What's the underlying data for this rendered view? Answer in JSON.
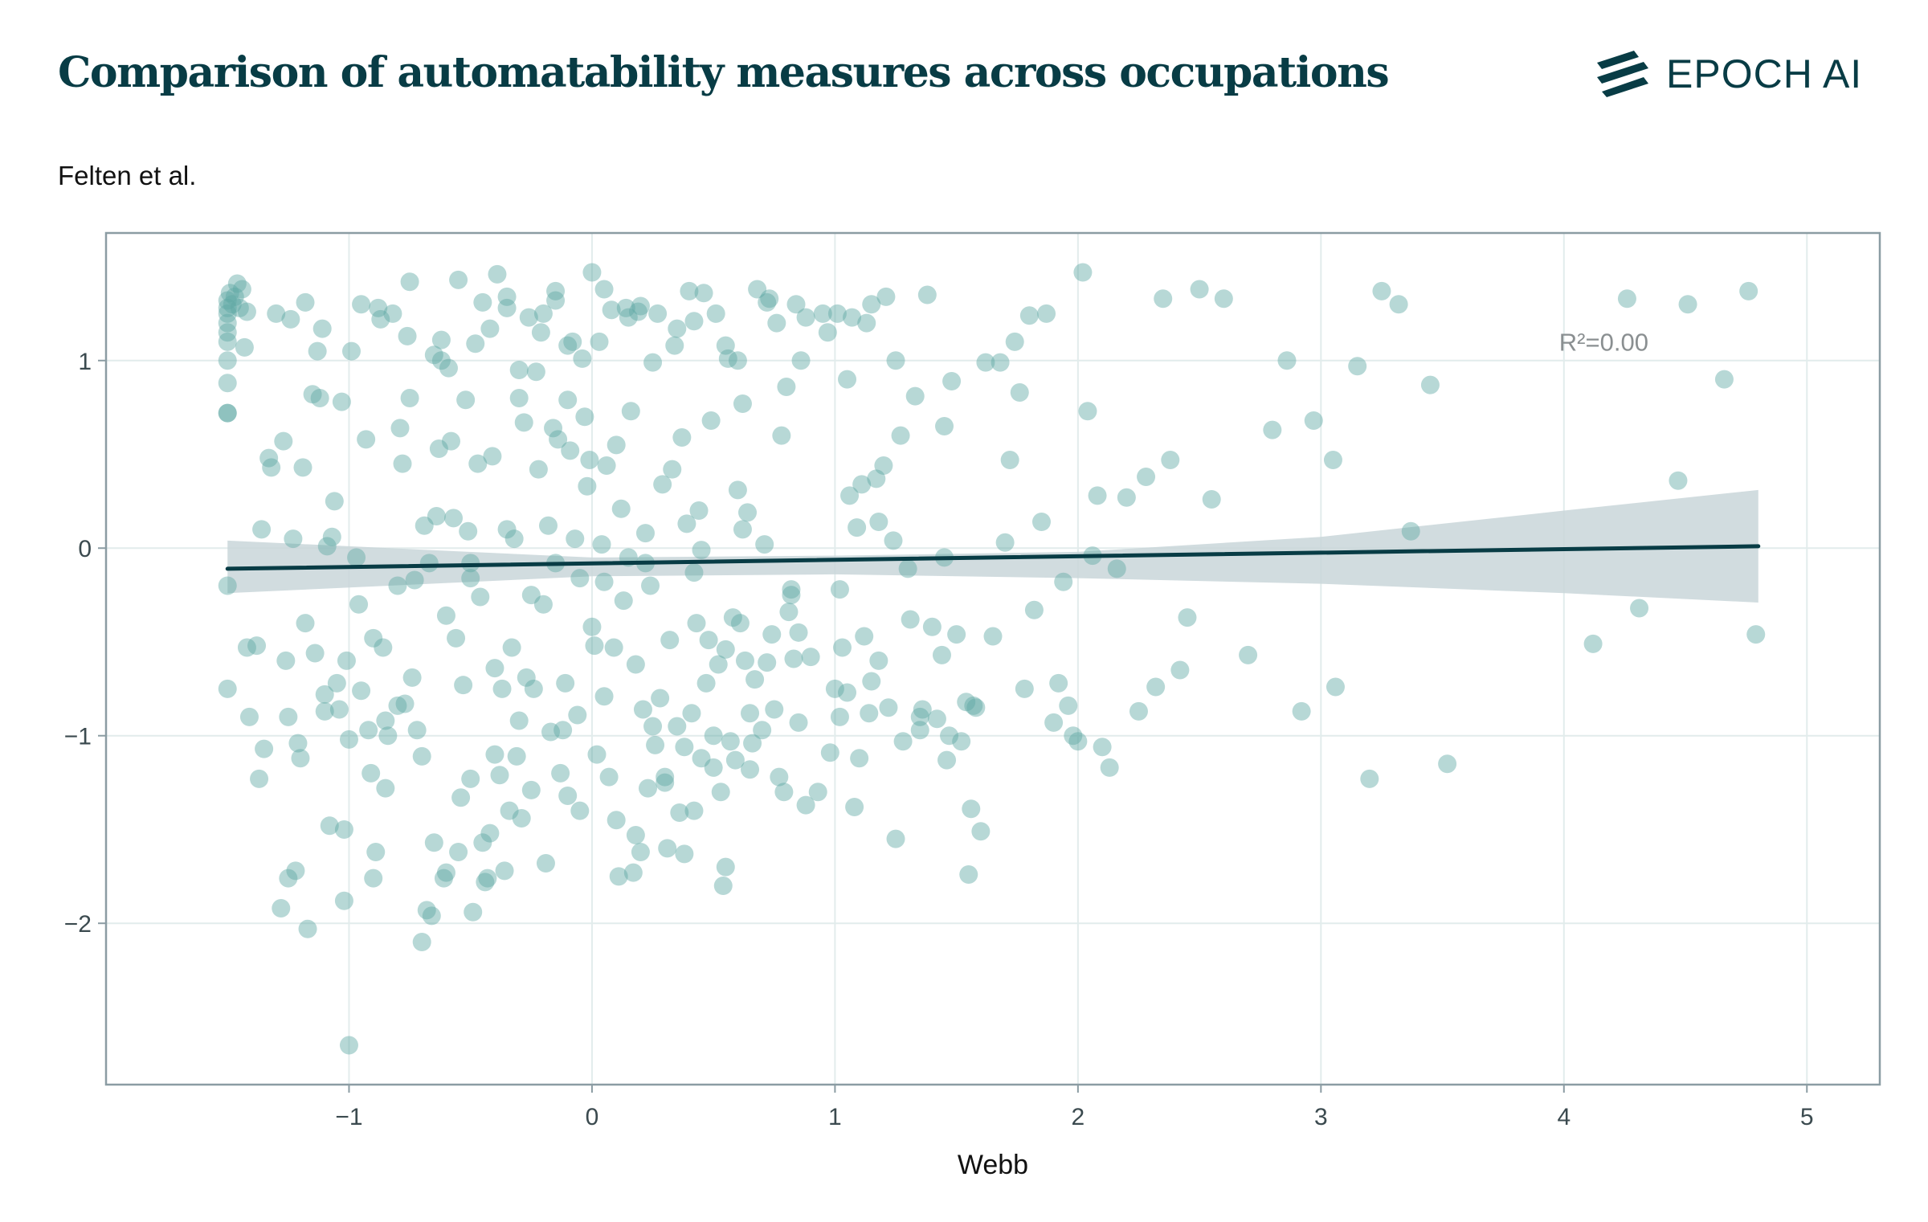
{
  "header": {
    "title": "Comparison of automatability measures across occupations",
    "logo_text": "EPOCH AI",
    "logo_icon": "epoch-stripes-icon"
  },
  "colors": {
    "point": "#5fa9a5",
    "line": "#083c45",
    "band": "#c9d6d9",
    "grid": "#e2ecec",
    "frame": "#8b9ca3"
  },
  "chart_data": {
    "type": "scatter",
    "title": "Comparison of automatability measures across occupations",
    "xlabel": "Webb",
    "ylabel": "Felten et al.",
    "xlim": [
      -2.0,
      5.3
    ],
    "ylim": [
      -2.86,
      1.68
    ],
    "xticks": [
      -1,
      0,
      1,
      2,
      3,
      4,
      5
    ],
    "yticks": [
      -2,
      -1,
      0,
      1
    ],
    "grid": true,
    "legend": "none",
    "annotation": "R²=0.00",
    "regression": {
      "x": [
        -1.5,
        4.8
      ],
      "y": [
        -0.11,
        0.01
      ],
      "band_x": [
        -1.5,
        0.0,
        1.0,
        2.0,
        3.0,
        4.0,
        4.8
      ],
      "band_lower": [
        -0.24,
        -0.15,
        -0.14,
        -0.16,
        -0.19,
        -0.24,
        -0.29
      ],
      "band_upper": [
        0.04,
        -0.05,
        -0.04,
        -0.02,
        0.06,
        0.2,
        0.31
      ]
    },
    "points": [
      [
        -1.5,
        1.32
      ],
      [
        -1.5,
        1.28
      ],
      [
        -1.5,
        1.25
      ],
      [
        -1.5,
        1.2
      ],
      [
        -1.5,
        1.15
      ],
      [
        -1.5,
        1.1
      ],
      [
        -1.5,
        1.0
      ],
      [
        -1.5,
        0.88
      ],
      [
        -1.5,
        0.72
      ],
      [
        -1.5,
        0.72
      ],
      [
        -1.5,
        -0.2
      ],
      [
        -1.5,
        -0.75
      ],
      [
        -1.49,
        1.36
      ],
      [
        -1.48,
        1.3
      ],
      [
        -1.47,
        1.34
      ],
      [
        -1.46,
        1.41
      ],
      [
        -1.45,
        1.28
      ],
      [
        -1.44,
        1.38
      ],
      [
        -1.43,
        1.07
      ],
      [
        -1.42,
        1.26
      ],
      [
        -1.42,
        -0.53
      ],
      [
        -1.41,
        -0.9
      ],
      [
        -1.38,
        -0.52
      ],
      [
        -1.37,
        -1.23
      ],
      [
        -1.36,
        0.1
      ],
      [
        -1.35,
        -1.07
      ],
      [
        -1.33,
        0.48
      ],
      [
        -1.32,
        0.43
      ],
      [
        -1.3,
        1.25
      ],
      [
        -1.28,
        -1.92
      ],
      [
        -1.27,
        0.57
      ],
      [
        -1.26,
        -0.6
      ],
      [
        -1.25,
        -0.9
      ],
      [
        -1.24,
        1.22
      ],
      [
        -1.23,
        0.05
      ],
      [
        -1.22,
        -1.72
      ],
      [
        -1.21,
        -1.04
      ],
      [
        -1.2,
        -1.12
      ],
      [
        -1.19,
        0.43
      ],
      [
        -1.18,
        1.31
      ],
      [
        -1.18,
        -0.4
      ],
      [
        -1.17,
        -2.03
      ],
      [
        -1.15,
        0.82
      ],
      [
        -1.14,
        -0.56
      ],
      [
        -1.13,
        1.05
      ],
      [
        -1.12,
        0.8
      ],
      [
        -1.11,
        1.17
      ],
      [
        -1.1,
        -0.78
      ],
      [
        -1.09,
        0.01
      ],
      [
        -1.08,
        -1.48
      ],
      [
        -1.07,
        0.06
      ],
      [
        -1.06,
        0.25
      ],
      [
        -1.05,
        -0.72
      ],
      [
        -1.04,
        -0.86
      ],
      [
        -1.03,
        0.78
      ],
      [
        -1.02,
        -1.5
      ],
      [
        -1.02,
        -1.88
      ],
      [
        -1.01,
        -0.6
      ],
      [
        -1.0,
        -2.65
      ],
      [
        -0.99,
        1.05
      ],
      [
        -0.97,
        -0.05
      ],
      [
        -0.96,
        -0.3
      ],
      [
        -0.95,
        -0.76
      ],
      [
        -0.93,
        0.58
      ],
      [
        -0.92,
        -0.97
      ],
      [
        -0.91,
        -1.2
      ],
      [
        -0.9,
        -1.76
      ],
      [
        -0.89,
        -1.62
      ],
      [
        -0.88,
        1.28
      ],
      [
        -0.87,
        1.22
      ],
      [
        -0.86,
        -0.53
      ],
      [
        -0.85,
        -0.92
      ],
      [
        -0.84,
        -1.0
      ],
      [
        -0.82,
        1.25
      ],
      [
        -0.8,
        -0.84
      ],
      [
        -0.79,
        0.64
      ],
      [
        -0.78,
        0.45
      ],
      [
        -0.77,
        -0.83
      ],
      [
        -0.76,
        1.13
      ],
      [
        -0.75,
        0.8
      ],
      [
        -0.74,
        -0.69
      ],
      [
        -0.73,
        -0.17
      ],
      [
        -0.72,
        -0.97
      ],
      [
        -0.7,
        -2.1
      ],
      [
        -0.69,
        0.12
      ],
      [
        -0.68,
        -1.93
      ],
      [
        -0.67,
        -0.08
      ],
      [
        -0.66,
        -1.96
      ],
      [
        -0.65,
        1.03
      ],
      [
        -0.64,
        0.17
      ],
      [
        -0.63,
        0.53
      ],
      [
        -0.62,
        1.11
      ],
      [
        -0.61,
        -1.76
      ],
      [
        -0.6,
        -1.73
      ],
      [
        -0.59,
        0.96
      ],
      [
        -0.58,
        0.57
      ],
      [
        -0.57,
        0.16
      ],
      [
        -0.56,
        -0.48
      ],
      [
        -0.55,
        -1.62
      ],
      [
        -0.54,
        -1.33
      ],
      [
        -0.53,
        -0.73
      ],
      [
        -0.52,
        0.79
      ],
      [
        -0.51,
        0.09
      ],
      [
        -0.5,
        -0.16
      ],
      [
        -0.49,
        -1.94
      ],
      [
        -0.48,
        1.09
      ],
      [
        -0.47,
        0.45
      ],
      [
        -0.46,
        -0.26
      ],
      [
        -0.45,
        -1.57
      ],
      [
        -0.44,
        -1.78
      ],
      [
        -0.43,
        -1.76
      ],
      [
        -0.42,
        1.17
      ],
      [
        -0.41,
        0.49
      ],
      [
        -0.4,
        -1.1
      ],
      [
        -0.39,
        1.46
      ],
      [
        -0.38,
        -1.21
      ],
      [
        -0.37,
        -0.75
      ],
      [
        -0.36,
        -1.72
      ],
      [
        -0.35,
        1.28
      ],
      [
        -0.34,
        -1.4
      ],
      [
        -0.33,
        -0.53
      ],
      [
        -0.32,
        0.05
      ],
      [
        -0.31,
        -1.11
      ],
      [
        -0.3,
        0.8
      ],
      [
        -0.29,
        -1.44
      ],
      [
        -0.28,
        0.67
      ],
      [
        -0.27,
        -0.69
      ],
      [
        -0.26,
        1.23
      ],
      [
        -0.25,
        -0.25
      ],
      [
        -0.24,
        -0.75
      ],
      [
        -0.23,
        0.94
      ],
      [
        -0.22,
        0.42
      ],
      [
        -0.21,
        1.15
      ],
      [
        -0.2,
        1.25
      ],
      [
        -0.19,
        -1.68
      ],
      [
        -0.18,
        0.12
      ],
      [
        -0.17,
        -0.98
      ],
      [
        -0.16,
        0.64
      ],
      [
        -0.15,
        1.32
      ],
      [
        -0.14,
        0.58
      ],
      [
        -0.13,
        -1.2
      ],
      [
        -0.12,
        -0.97
      ],
      [
        -0.11,
        -0.72
      ],
      [
        -0.1,
        1.08
      ],
      [
        -0.09,
        0.52
      ],
      [
        -0.08,
        1.1
      ],
      [
        -0.07,
        0.05
      ],
      [
        -0.06,
        -0.89
      ],
      [
        -0.05,
        -0.16
      ],
      [
        -0.04,
        1.01
      ],
      [
        -0.03,
        0.7
      ],
      [
        -0.02,
        0.33
      ],
      [
        -0.01,
        0.47
      ],
      [
        0.0,
        1.47
      ],
      [
        0.01,
        -0.52
      ],
      [
        0.02,
        -1.1
      ],
      [
        0.03,
        1.1
      ],
      [
        0.04,
        0.02
      ],
      [
        0.05,
        -0.79
      ],
      [
        0.06,
        0.44
      ],
      [
        0.07,
        -1.22
      ],
      [
        0.08,
        1.27
      ],
      [
        0.09,
        -0.53
      ],
      [
        0.1,
        0.55
      ],
      [
        0.11,
        -1.75
      ],
      [
        0.12,
        0.21
      ],
      [
        0.13,
        -0.28
      ],
      [
        0.14,
        1.28
      ],
      [
        0.15,
        -0.05
      ],
      [
        0.16,
        0.73
      ],
      [
        0.17,
        -1.73
      ],
      [
        0.18,
        -0.62
      ],
      [
        0.19,
        1.26
      ],
      [
        0.2,
        -1.62
      ],
      [
        0.21,
        -0.86
      ],
      [
        0.22,
        0.08
      ],
      [
        0.23,
        -1.28
      ],
      [
        0.24,
        -0.2
      ],
      [
        0.25,
        0.99
      ],
      [
        0.26,
        -1.05
      ],
      [
        0.27,
        1.25
      ],
      [
        0.28,
        -0.8
      ],
      [
        0.29,
        0.34
      ],
      [
        0.3,
        -1.22
      ],
      [
        0.31,
        -1.6
      ],
      [
        0.32,
        -0.49
      ],
      [
        0.33,
        0.42
      ],
      [
        0.34,
        1.08
      ],
      [
        0.35,
        -0.95
      ],
      [
        0.36,
        -1.41
      ],
      [
        0.37,
        0.59
      ],
      [
        0.38,
        -1.06
      ],
      [
        0.39,
        0.13
      ],
      [
        0.4,
        1.37
      ],
      [
        0.41,
        -0.88
      ],
      [
        0.42,
        -1.4
      ],
      [
        0.43,
        -0.4
      ],
      [
        0.44,
        0.2
      ],
      [
        0.45,
        -0.01
      ],
      [
        0.46,
        1.36
      ],
      [
        0.47,
        -0.72
      ],
      [
        0.48,
        -0.49
      ],
      [
        0.49,
        0.68
      ],
      [
        0.5,
        -1.0
      ],
      [
        0.51,
        1.25
      ],
      [
        0.52,
        -0.62
      ],
      [
        0.53,
        -1.3
      ],
      [
        0.54,
        -1.8
      ],
      [
        0.55,
        -0.54
      ],
      [
        0.56,
        1.01
      ],
      [
        0.57,
        -1.03
      ],
      [
        0.58,
        -0.37
      ],
      [
        0.59,
        -1.13
      ],
      [
        0.6,
        0.31
      ],
      [
        0.61,
        -0.4
      ],
      [
        0.62,
        0.77
      ],
      [
        0.63,
        -0.6
      ],
      [
        0.64,
        0.19
      ],
      [
        0.65,
        -0.88
      ],
      [
        0.66,
        -1.04
      ],
      [
        0.67,
        -0.7
      ],
      [
        0.68,
        1.38
      ],
      [
        0.7,
        -0.97
      ],
      [
        0.71,
        0.02
      ],
      [
        0.72,
        -0.61
      ],
      [
        0.73,
        1.33
      ],
      [
        0.74,
        -0.46
      ],
      [
        0.75,
        -0.86
      ],
      [
        0.76,
        1.2
      ],
      [
        0.77,
        -1.22
      ],
      [
        0.78,
        0.6
      ],
      [
        0.79,
        -1.3
      ],
      [
        0.8,
        0.86
      ],
      [
        0.81,
        -0.34
      ],
      [
        0.82,
        -0.22
      ],
      [
        0.83,
        -0.59
      ],
      [
        0.84,
        1.3
      ],
      [
        0.85,
        -0.93
      ],
      [
        0.86,
        1.0
      ],
      [
        0.88,
        -1.37
      ],
      [
        0.9,
        -0.58
      ],
      [
        0.93,
        -1.3
      ],
      [
        0.95,
        1.25
      ],
      [
        0.97,
        1.15
      ],
      [
        0.98,
        -1.09
      ],
      [
        1.0,
        -0.75
      ],
      [
        1.01,
        1.25
      ],
      [
        1.02,
        -0.9
      ],
      [
        1.03,
        -0.53
      ],
      [
        1.05,
        0.9
      ],
      [
        1.06,
        0.28
      ],
      [
        1.07,
        1.23
      ],
      [
        1.08,
        -1.38
      ],
      [
        1.09,
        0.11
      ],
      [
        1.1,
        -1.12
      ],
      [
        1.11,
        0.34
      ],
      [
        1.12,
        -0.47
      ],
      [
        1.13,
        1.2
      ],
      [
        1.14,
        -0.88
      ],
      [
        1.15,
        -0.71
      ],
      [
        1.17,
        0.37
      ],
      [
        1.18,
        -0.6
      ],
      [
        1.2,
        0.44
      ],
      [
        1.21,
        1.34
      ],
      [
        1.22,
        -0.85
      ],
      [
        1.24,
        0.04
      ],
      [
        1.25,
        -1.55
      ],
      [
        1.27,
        0.6
      ],
      [
        1.28,
        -1.03
      ],
      [
        1.3,
        -0.11
      ],
      [
        1.31,
        -0.38
      ],
      [
        1.33,
        0.81
      ],
      [
        1.35,
        -0.9
      ],
      [
        1.36,
        -0.86
      ],
      [
        1.38,
        1.35
      ],
      [
        1.4,
        -0.42
      ],
      [
        1.42,
        -0.91
      ],
      [
        1.44,
        -0.57
      ],
      [
        1.45,
        0.65
      ],
      [
        1.46,
        -1.13
      ],
      [
        1.47,
        -1.0
      ],
      [
        1.48,
        0.89
      ],
      [
        1.5,
        -0.46
      ],
      [
        1.52,
        -1.03
      ],
      [
        1.54,
        -0.82
      ],
      [
        1.55,
        -1.74
      ],
      [
        1.56,
        -1.39
      ],
      [
        1.58,
        -0.85
      ],
      [
        1.6,
        -1.51
      ],
      [
        1.62,
        0.99
      ],
      [
        1.65,
        -0.47
      ],
      [
        1.68,
        0.99
      ],
      [
        1.7,
        0.03
      ],
      [
        1.72,
        0.47
      ],
      [
        1.74,
        1.1
      ],
      [
        1.76,
        0.83
      ],
      [
        1.78,
        -0.75
      ],
      [
        1.8,
        1.24
      ],
      [
        1.82,
        -0.33
      ],
      [
        1.85,
        0.14
      ],
      [
        1.87,
        1.25
      ],
      [
        1.9,
        -0.93
      ],
      [
        1.92,
        -0.72
      ],
      [
        1.94,
        -0.18
      ],
      [
        1.96,
        -0.84
      ],
      [
        1.98,
        -1.0
      ],
      [
        2.0,
        -1.03
      ],
      [
        2.02,
        1.47
      ],
      [
        2.04,
        0.73
      ],
      [
        2.06,
        -0.04
      ],
      [
        2.08,
        0.28
      ],
      [
        2.1,
        -1.06
      ],
      [
        2.13,
        -1.17
      ],
      [
        2.16,
        -0.11
      ],
      [
        2.2,
        0.27
      ],
      [
        2.25,
        -0.87
      ],
      [
        2.28,
        0.38
      ],
      [
        2.32,
        -0.74
      ],
      [
        2.35,
        1.33
      ],
      [
        2.38,
        0.47
      ],
      [
        2.42,
        -0.65
      ],
      [
        2.45,
        -0.37
      ],
      [
        2.5,
        1.38
      ],
      [
        2.55,
        0.26
      ],
      [
        2.6,
        1.33
      ],
      [
        2.7,
        -0.57
      ],
      [
        2.8,
        0.63
      ],
      [
        2.86,
        1.0
      ],
      [
        2.92,
        -0.87
      ],
      [
        2.97,
        0.68
      ],
      [
        3.05,
        0.47
      ],
      [
        3.06,
        -0.74
      ],
      [
        3.15,
        0.97
      ],
      [
        3.2,
        -1.23
      ],
      [
        3.25,
        1.37
      ],
      [
        3.32,
        1.3
      ],
      [
        3.37,
        0.09
      ],
      [
        3.45,
        0.87
      ],
      [
        3.52,
        -1.15
      ],
      [
        4.12,
        -0.51
      ],
      [
        4.26,
        1.33
      ],
      [
        4.31,
        -0.32
      ],
      [
        4.47,
        0.36
      ],
      [
        4.51,
        1.3
      ],
      [
        4.66,
        0.9
      ],
      [
        4.76,
        1.37
      ],
      [
        4.79,
        -0.46
      ],
      [
        -0.62,
        1.0
      ],
      [
        -0.45,
        1.31
      ],
      [
        -0.3,
        0.95
      ],
      [
        -0.1,
        0.79
      ],
      [
        0.05,
        1.38
      ],
      [
        0.2,
        1.29
      ],
      [
        0.42,
        1.21
      ],
      [
        0.6,
        1.0
      ],
      [
        0.72,
        1.31
      ],
      [
        0.88,
        1.23
      ],
      [
        1.15,
        1.3
      ],
      [
        1.25,
        1.0
      ],
      [
        -0.95,
        1.3
      ],
      [
        -0.75,
        1.42
      ],
      [
        -0.55,
        1.43
      ],
      [
        -0.35,
        1.34
      ],
      [
        -0.15,
        1.37
      ],
      [
        0.15,
        1.23
      ],
      [
        0.35,
        1.17
      ],
      [
        0.55,
        1.08
      ],
      [
        -0.9,
        -0.48
      ],
      [
        -0.6,
        -0.36
      ],
      [
        -0.4,
        -0.64
      ],
      [
        -0.2,
        -0.3
      ],
      [
        0.0,
        -0.42
      ],
      [
        0.25,
        -0.95
      ],
      [
        0.45,
        -1.12
      ],
      [
        0.65,
        -1.18
      ],
      [
        0.85,
        -0.45
      ],
      [
        1.05,
        -0.77
      ],
      [
        1.35,
        -0.97
      ],
      [
        1.57,
        -0.84
      ],
      [
        -1.0,
        -1.02
      ],
      [
        -0.7,
        -1.11
      ],
      [
        -0.5,
        -1.23
      ],
      [
        -0.3,
        -0.92
      ],
      [
        -0.1,
        -1.32
      ],
      [
        0.1,
        -1.45
      ],
      [
        0.3,
        -1.25
      ],
      [
        0.5,
        -1.17
      ],
      [
        -1.1,
        -0.87
      ],
      [
        -0.85,
        -1.28
      ],
      [
        -0.65,
        -1.57
      ],
      [
        -0.42,
        -1.52
      ],
      [
        -0.25,
        -1.29
      ],
      [
        -0.05,
        -1.4
      ],
      [
        0.18,
        -1.53
      ],
      [
        0.38,
        -1.63
      ],
      [
        0.55,
        -1.7
      ],
      [
        -1.25,
        -1.76
      ],
      [
        -0.8,
        -0.2
      ],
      [
        -0.5,
        -0.08
      ],
      [
        -0.35,
        0.1
      ],
      [
        -0.15,
        -0.08
      ],
      [
        0.05,
        -0.18
      ],
      [
        0.22,
        -0.08
      ],
      [
        0.42,
        -0.13
      ],
      [
        0.62,
        0.1
      ],
      [
        0.82,
        -0.25
      ],
      [
        1.02,
        -0.22
      ],
      [
        1.18,
        0.14
      ],
      [
        1.45,
        -0.05
      ]
    ]
  }
}
